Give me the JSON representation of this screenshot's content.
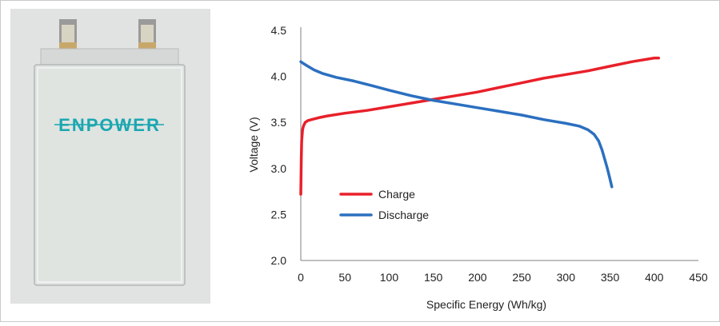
{
  "product_photo": {
    "brand_logo_text": "ENPOWER",
    "brand_color": "#1aa7b0",
    "cell_body_color": "#dfe4e1",
    "background_color": "#e1e2e2"
  },
  "chart_data": {
    "type": "line",
    "xlabel": "Specific Energy (Wh/kg)",
    "ylabel": "Voltage (V)",
    "xlim": [
      0,
      450
    ],
    "ylim": [
      2.0,
      4.5
    ],
    "x_ticks": [
      "0",
      "50",
      "100",
      "150",
      "200",
      "250",
      "300",
      "350",
      "400",
      "450"
    ],
    "y_ticks": [
      "2.0",
      "2.5",
      "3.0",
      "3.5",
      "4.0",
      "4.5"
    ],
    "grid": false,
    "legend_position": "lower-left",
    "series": [
      {
        "name": "Charge",
        "color": "#e8202a",
        "x": [
          0,
          0.5,
          1,
          2,
          3,
          5,
          8,
          12,
          20,
          30,
          50,
          75,
          100,
          125,
          150,
          175,
          200,
          225,
          250,
          275,
          300,
          325,
          350,
          375,
          400,
          405
        ],
        "y": [
          2.72,
          3.1,
          3.3,
          3.42,
          3.46,
          3.5,
          3.52,
          3.53,
          3.55,
          3.57,
          3.6,
          3.63,
          3.67,
          3.71,
          3.75,
          3.79,
          3.83,
          3.88,
          3.93,
          3.98,
          4.02,
          4.06,
          4.11,
          4.16,
          4.2,
          4.2
        ]
      },
      {
        "name": "Discharge",
        "color": "#2b6fc0",
        "x": [
          0,
          3,
          8,
          15,
          25,
          40,
          60,
          80,
          100,
          125,
          150,
          175,
          200,
          225,
          250,
          275,
          300,
          315,
          325,
          332,
          337,
          341,
          344,
          347,
          350,
          352
        ],
        "y": [
          4.16,
          4.14,
          4.11,
          4.07,
          4.03,
          3.99,
          3.95,
          3.9,
          3.85,
          3.79,
          3.74,
          3.7,
          3.66,
          3.62,
          3.58,
          3.53,
          3.49,
          3.46,
          3.42,
          3.37,
          3.3,
          3.2,
          3.1,
          3.0,
          2.88,
          2.8
        ]
      }
    ]
  }
}
